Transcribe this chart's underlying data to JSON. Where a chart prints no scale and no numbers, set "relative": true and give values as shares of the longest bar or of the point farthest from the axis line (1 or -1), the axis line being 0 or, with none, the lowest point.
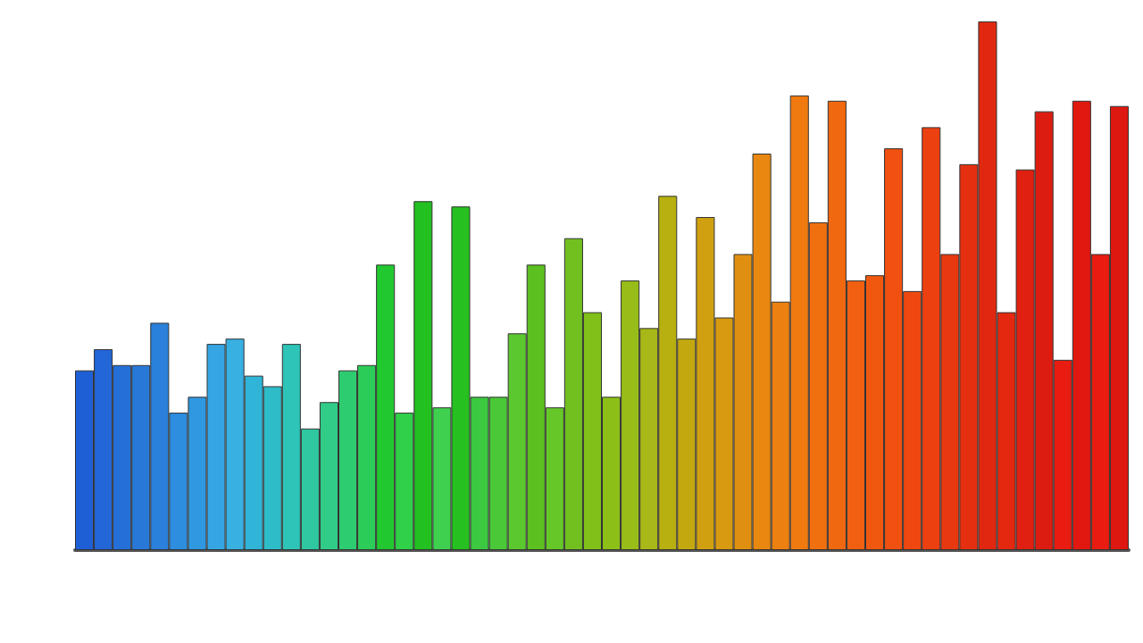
{
  "chart_data": {
    "type": "bar",
    "relative": true,
    "categories": [
      null,
      null,
      null,
      null,
      null,
      null,
      null,
      null,
      null,
      null,
      null,
      null,
      null,
      null,
      null,
      null,
      null,
      null,
      null,
      null,
      null,
      null,
      null,
      null,
      null,
      null,
      null,
      null,
      null,
      null,
      null,
      null,
      null,
      null,
      null,
      null,
      null,
      null,
      null,
      null,
      null,
      null,
      null,
      null,
      null,
      null,
      null,
      null,
      null,
      null,
      null,
      null,
      null,
      null,
      null,
      null
    ],
    "values": [
      0.34,
      0.38,
      0.35,
      0.35,
      0.43,
      0.26,
      0.29,
      0.39,
      0.4,
      0.33,
      0.31,
      0.39,
      0.23,
      0.28,
      0.34,
      0.35,
      0.54,
      0.26,
      0.66,
      0.27,
      0.65,
      0.29,
      0.29,
      0.41,
      0.54,
      0.27,
      0.59,
      0.45,
      0.29,
      0.51,
      0.42,
      0.67,
      0.4,
      0.63,
      0.44,
      0.56,
      0.75,
      0.47,
      0.86,
      0.62,
      0.85,
      0.51,
      0.52,
      0.76,
      0.49,
      0.8,
      0.56,
      0.73,
      1,
      0.45,
      0.72,
      0.83,
      0.36,
      0.85,
      0.56,
      0.84
    ],
    "colors": [
      "#1f5fd6",
      "#2266d8",
      "#2570d8",
      "#2878d8",
      "#2a80da",
      "#2d8ee0",
      "#3098e0",
      "#35a6e3",
      "#38b0e2",
      "#30b4d8",
      "#2ebcc8",
      "#2ec4b8",
      "#30c8a0",
      "#30cc88",
      "#2ecc70",
      "#2ccc58",
      "#22c830",
      "#30d048",
      "#22c020",
      "#40d050",
      "#26c020",
      "#3cc840",
      "#4ac838",
      "#5cc830",
      "#5cc020",
      "#66c828",
      "#72c020",
      "#80c018",
      "#8cc018",
      "#98bc18",
      "#a8b818",
      "#b8b010",
      "#c4a810",
      "#d0a010",
      "#d89a10",
      "#e09010",
      "#e88810",
      "#ec8010",
      "#f07a10",
      "#f07010",
      "#f06810",
      "#f06010",
      "#f05810",
      "#f05010",
      "#ee4810",
      "#ec4010",
      "#e83810",
      "#e43010",
      "#e02810",
      "#e42810",
      "#e02010",
      "#dc1c10",
      "#e81c10",
      "#e01810",
      "#e81c10",
      "#dc1810"
    ]
  }
}
